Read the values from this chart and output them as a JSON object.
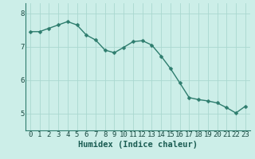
{
  "x": [
    0,
    1,
    2,
    3,
    4,
    5,
    6,
    7,
    8,
    9,
    10,
    11,
    12,
    13,
    14,
    15,
    16,
    17,
    18,
    19,
    20,
    21,
    22,
    23
  ],
  "y": [
    7.45,
    7.45,
    7.55,
    7.65,
    7.75,
    7.65,
    7.35,
    7.2,
    6.9,
    6.82,
    6.98,
    7.15,
    7.18,
    7.05,
    6.72,
    6.35,
    5.92,
    5.48,
    5.42,
    5.38,
    5.32,
    5.18,
    5.02,
    5.22
  ],
  "line_color": "#2e7d6e",
  "marker": "D",
  "marker_size": 2.5,
  "bg_color": "#cceee8",
  "grid_color": "#aad8d0",
  "xlabel": "Humidex (Indice chaleur)",
  "ylim": [
    4.5,
    8.3
  ],
  "xlim": [
    -0.5,
    23.5
  ],
  "yticks": [
    5,
    6,
    7,
    8
  ],
  "xticks": [
    0,
    1,
    2,
    3,
    4,
    5,
    6,
    7,
    8,
    9,
    10,
    11,
    12,
    13,
    14,
    15,
    16,
    17,
    18,
    19,
    20,
    21,
    22,
    23
  ],
  "tick_label_fontsize": 6.5,
  "xlabel_fontsize": 7.5,
  "axis_color": "#2e7d6e",
  "spine_color": "#2e7d6e"
}
